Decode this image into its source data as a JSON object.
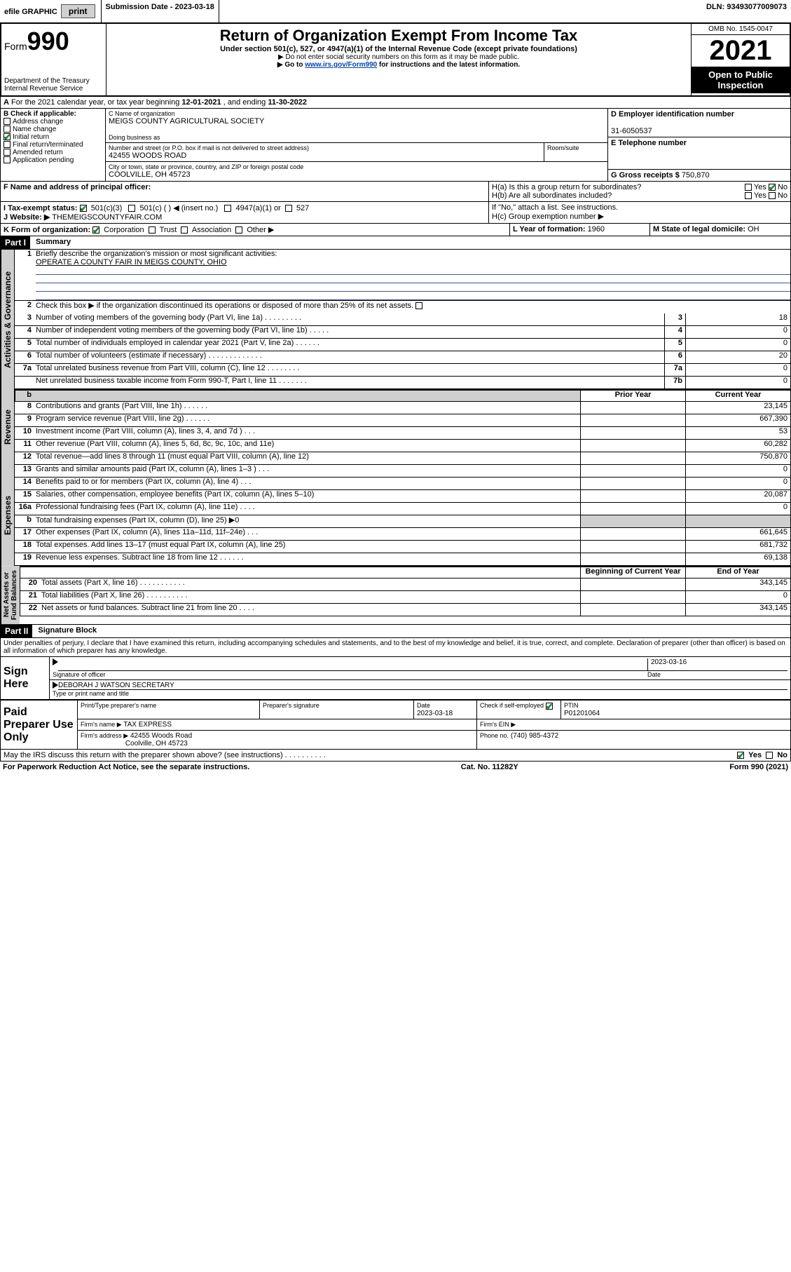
{
  "topbar": {
    "efile": "efile GRAPHIC",
    "print": "print",
    "submission_label": "Submission Date - 2023-03-18",
    "dln": "DLN: 93493077009073"
  },
  "header": {
    "form_prefix": "Form",
    "form_number": "990",
    "dept": "Department of the Treasury",
    "irs": "Internal Revenue Service",
    "title": "Return of Organization Exempt From Income Tax",
    "subtitle": "Under section 501(c), 527, or 4947(a)(1) of the Internal Revenue Code (except private foundations)",
    "note1": "▶ Do not enter social security numbers on this form as it may be made public.",
    "note2_pre": "▶ Go to ",
    "note2_link": "www.irs.gov/Form990",
    "note2_post": " for instructions and the latest information.",
    "omb": "OMB No. 1545-0047",
    "year": "2021",
    "open": "Open to Public Inspection"
  },
  "periodA": {
    "text_pre": "For the 2021 calendar year, or tax year beginning ",
    "begin": "12-01-2021",
    "mid": " , and ending ",
    "end": "11-30-2022"
  },
  "secB": {
    "label": "B Check if applicable:",
    "opts": [
      "Address change",
      "Name change",
      "Initial return",
      "Final return/terminated",
      "Amended return",
      "Application pending"
    ],
    "checked_idx": 2
  },
  "secC": {
    "name_label": "C Name of organization",
    "name": "MEIGS COUNTY AGRICULTURAL SOCIETY",
    "dba_label": "Doing business as",
    "addr_label": "Number and street (or P.O. box if mail is not delivered to street address)",
    "room_label": "Room/suite",
    "addr": "42455 WOODS ROAD",
    "city_label": "City or town, state or province, country, and ZIP or foreign postal code",
    "city": "COOLVILLE, OH  45723"
  },
  "secD": {
    "label": "D Employer identification number",
    "val": "31-6050537"
  },
  "secE": {
    "label": "E Telephone number",
    "val": ""
  },
  "secG": {
    "label": "G Gross receipts $",
    "val": "750,870"
  },
  "secF": {
    "label": "F Name and address of principal officer:",
    "val": ""
  },
  "secH": {
    "ha": "H(a)  Is this a group return for subordinates?",
    "ha_yes": "Yes",
    "ha_no": "No",
    "hb": "H(b)  Are all subordinates included?",
    "hb_yes": "Yes",
    "hb_no": "No",
    "hb_note": "If \"No,\" attach a list. See instructions.",
    "hc": "H(c)  Group exemption number ▶"
  },
  "secI": {
    "label": "I   Tax-exempt status:",
    "o1": "501(c)(3)",
    "o2": "501(c) (   ) ◀ (insert no.)",
    "o3": "4947(a)(1) or",
    "o4": "527"
  },
  "secJ": {
    "label": "J   Website: ▶",
    "val": "THEMEIGSCOUNTYFAIR.COM"
  },
  "secK": {
    "label": "K Form of organization:",
    "o1": "Corporation",
    "o2": "Trust",
    "o3": "Association",
    "o4": "Other ▶"
  },
  "secL": {
    "label": "L Year of formation:",
    "val": "1960"
  },
  "secM": {
    "label": "M State of legal domicile:",
    "val": "OH"
  },
  "partI": {
    "title": "Part I",
    "subtitle": "Summary",
    "q1": "Briefly describe the organization's mission or most significant activities:",
    "q1a": "OPERATE A COUNTY FAIR IN MEIGS COUNTY, OHIO",
    "q2": "Check this box ▶        if the organization discontinued its operations or disposed of more than 25% of its net assets.",
    "rows_gov": [
      {
        "n": "3",
        "d": "Number of voting members of the governing body (Part VI, line 1a)  .    .    .    .    .    .    .    .    .",
        "c": "3",
        "v": "18"
      },
      {
        "n": "4",
        "d": "Number of independent voting members of the governing body (Part VI, line 1b)   .    .    .    .    .",
        "c": "4",
        "v": "0"
      },
      {
        "n": "5",
        "d": "Total number of individuals employed in calendar year 2021 (Part V, line 2a)   .    .    .    .    .    .",
        "c": "5",
        "v": "0"
      },
      {
        "n": "6",
        "d": "Total number of volunteers (estimate if necessary)   .    .    .    .    .    .    .    .    .    .    .    .    .",
        "c": "6",
        "v": "20"
      },
      {
        "n": "7a",
        "d": "Total unrelated business revenue from Part VIII, column (C), line 12   .    .    .    .    .    .    .    .",
        "c": "7a",
        "v": "0"
      },
      {
        "n": "",
        "d": "Net unrelated business taxable income from Form 990-T, Part I, line 11   .    .    .    .    .    .    .",
        "c": "7b",
        "v": "0"
      }
    ],
    "hdr_prior": "Prior Year",
    "hdr_curr": "Current Year",
    "rows_rev": [
      {
        "n": "8",
        "d": "Contributions and grants (Part VIII, line 1h)   .    .    .    .    .    .",
        "p": "",
        "v": "23,145"
      },
      {
        "n": "9",
        "d": "Program service revenue (Part VIII, line 2g)   .    .    .    .    .    .",
        "p": "",
        "v": "667,390"
      },
      {
        "n": "10",
        "d": "Investment income (Part VIII, column (A), lines 3, 4, and 7d )   .    .    .",
        "p": "",
        "v": "53"
      },
      {
        "n": "11",
        "d": "Other revenue (Part VIII, column (A), lines 5, 6d, 8c, 9c, 10c, and 11e)",
        "p": "",
        "v": "60,282"
      },
      {
        "n": "12",
        "d": "Total revenue—add lines 8 through 11 (must equal Part VIII, column (A), line 12)",
        "p": "",
        "v": "750,870"
      }
    ],
    "rows_exp": [
      {
        "n": "13",
        "d": "Grants and similar amounts paid (Part IX, column (A), lines 1–3 )   .    .    .",
        "p": "",
        "v": "0"
      },
      {
        "n": "14",
        "d": "Benefits paid to or for members (Part IX, column (A), line 4)   .    .    .",
        "p": "",
        "v": "0"
      },
      {
        "n": "15",
        "d": "Salaries, other compensation, employee benefits (Part IX, column (A), lines 5–10)",
        "p": "",
        "v": "20,087"
      },
      {
        "n": "16a",
        "d": "Professional fundraising fees (Part IX, column (A), line 11e)   .    .    .    .",
        "p": "",
        "v": "0"
      },
      {
        "n": "b",
        "d": "Total fundraising expenses (Part IX, column (D), line 25) ▶0",
        "p": "grey",
        "v": "grey"
      },
      {
        "n": "17",
        "d": "Other expenses (Part IX, column (A), lines 11a–11d, 11f–24e)   .    .    .",
        "p": "",
        "v": "661,645"
      },
      {
        "n": "18",
        "d": "Total expenses. Add lines 13–17 (must equal Part IX, column (A), line 25)",
        "p": "",
        "v": "681,732"
      },
      {
        "n": "19",
        "d": "Revenue less expenses. Subtract line 18 from line 12   .    .    .    .    .    .",
        "p": "",
        "v": "69,138"
      }
    ],
    "hdr_boy": "Beginning of Current Year",
    "hdr_eoy": "End of Year",
    "rows_net": [
      {
        "n": "20",
        "d": "Total assets (Part X, line 16)   .    .    .    .    .    .    .    .    .    .    .",
        "p": "",
        "v": "343,145"
      },
      {
        "n": "21",
        "d": "Total liabilities (Part X, line 26)   .    .    .    .    .    .    .    .    .    .",
        "p": "",
        "v": "0"
      },
      {
        "n": "22",
        "d": "Net assets or fund balances. Subtract line 21 from line 20   .    .    .    .",
        "p": "",
        "v": "343,145"
      }
    ]
  },
  "partII": {
    "title": "Part II",
    "subtitle": "Signature Block",
    "decl": "Under penalties of perjury, I declare that I have examined this return, including accompanying schedules and statements, and to the best of my knowledge and belief, it is true, correct, and complete. Declaration of preparer (other than officer) is based on all information of which preparer has any knowledge.",
    "sign_here": "Sign Here",
    "sig_off": "Signature of officer",
    "sig_date_label": "Date",
    "sig_date": "2023-03-16",
    "sig_name": "DEBORAH J WATSON SECRETARY",
    "sig_name_label": "Type or print name and title",
    "paid": "Paid Preparer Use Only",
    "p_name_label": "Print/Type preparer's name",
    "p_sig_label": "Preparer's signature",
    "p_date_label": "Date",
    "p_date": "2023-03-18",
    "p_self": "Check         if self-employed",
    "p_ptin_label": "PTIN",
    "p_ptin": "P01201064",
    "firm_name_label": "Firm's name    ▶",
    "firm_name": "TAX EXPRESS",
    "firm_ein_label": "Firm's EIN ▶",
    "firm_addr_label": "Firm's address ▶",
    "firm_addr1": "42455 Woods Road",
    "firm_addr2": "Coolville, OH  45723",
    "firm_phone_label": "Phone no.",
    "firm_phone": "(740) 985-4372",
    "discuss": "May the IRS discuss this return with the preparer shown above? (see instructions)   .    .    .    .    .    .    .    .    .    .",
    "d_yes": "Yes",
    "d_no": "No"
  },
  "foot": {
    "pra": "For Paperwork Reduction Act Notice, see the separate instructions.",
    "cat": "Cat. No. 11282Y",
    "form": "Form 990 (2021)"
  }
}
